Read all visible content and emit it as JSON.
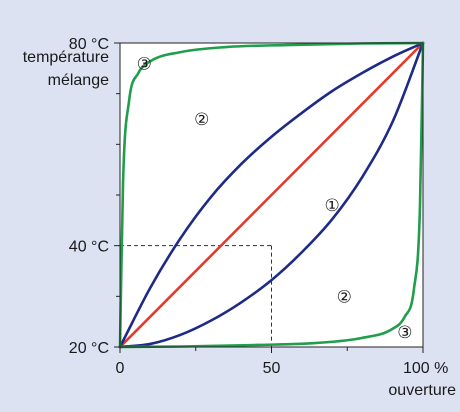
{
  "chart_data": {
    "type": "line",
    "x_axis": {
      "label": "ouverture",
      "range": [
        0,
        100
      ],
      "unit": "%",
      "ticks": [
        {
          "value": 0,
          "label": "0"
        },
        {
          "value": 50,
          "label": "50"
        },
        {
          "value": 100,
          "label": "100 %"
        }
      ]
    },
    "y_axis": {
      "label_lines": [
        "température",
        "mélange"
      ],
      "range": [
        20,
        80
      ],
      "unit": "°C",
      "ticks": [
        {
          "value": 20,
          "label": "20 °C"
        },
        {
          "value": 40,
          "label": "40 °C"
        },
        {
          "value": 80,
          "label": "80 °C"
        }
      ],
      "minor_tick_values": [
        30,
        50,
        60,
        70
      ]
    },
    "reference_point": {
      "x": 50,
      "y": 40,
      "style": "dashed"
    },
    "series": [
      {
        "marker": "①",
        "color": "#e53a2b",
        "x": [
          0,
          100
        ],
        "y": [
          20,
          80
        ]
      },
      {
        "marker": "②",
        "color": "#1d2b86",
        "x": [
          0,
          10,
          20,
          30,
          40,
          50,
          60,
          70,
          80,
          90,
          100
        ],
        "y": [
          20,
          31.7,
          41.5,
          49.6,
          56.1,
          61.5,
          66.2,
          70.5,
          74.1,
          77.3,
          80
        ]
      },
      {
        "marker": "②",
        "color": "#1d2b86",
        "x": [
          0,
          10,
          20,
          30,
          40,
          50,
          60,
          70,
          80,
          90,
          100
        ],
        "y": [
          20,
          20.6,
          22.4,
          25.2,
          28.8,
          33.2,
          38.7,
          45.2,
          53.6,
          64.5,
          80
        ]
      },
      {
        "marker": "③",
        "color": "#1f9e4c",
        "x": [
          0,
          1,
          3,
          6,
          10,
          20,
          35,
          55,
          80,
          100
        ],
        "y": [
          20,
          52.4,
          68.6,
          74.0,
          76.4,
          78.2,
          79.2,
          79.6,
          79.9,
          80
        ]
      },
      {
        "marker": "③",
        "color": "#1f9e4c",
        "x": [
          0,
          20,
          45,
          65,
          80,
          90,
          94,
          97,
          99,
          100
        ],
        "y": [
          20,
          20.1,
          20.4,
          20.8,
          21.8,
          23.6,
          26.0,
          31.4,
          47.6,
          80
        ]
      }
    ],
    "labels": [
      {
        "text": "①",
        "x": 70,
        "y": 48
      },
      {
        "text": "②",
        "x": 27,
        "y": 65
      },
      {
        "text": "②",
        "x": 74,
        "y": 30
      },
      {
        "text": "③",
        "x": 8,
        "y": 76
      },
      {
        "text": "③",
        "x": 94,
        "y": 23
      }
    ],
    "grid": false,
    "background": "#dde2f2",
    "plot_background": "#ffffff"
  }
}
